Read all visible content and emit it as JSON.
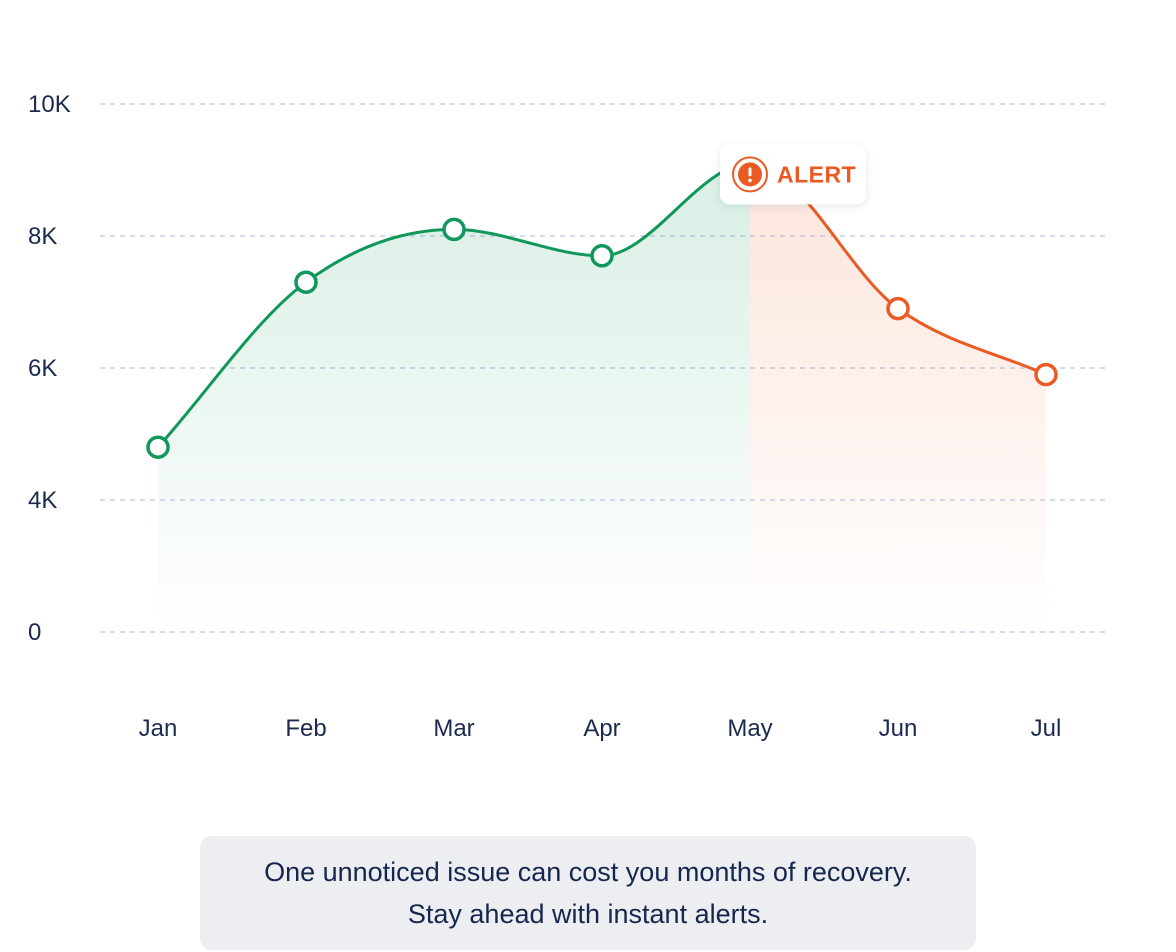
{
  "chart_data": {
    "type": "line",
    "categories": [
      "Jan",
      "Feb",
      "Mar",
      "Apr",
      "May",
      "Jun",
      "Jul"
    ],
    "series": [
      {
        "values": [
          4800,
          7300,
          8100,
          7700,
          9100,
          6900,
          5900
        ]
      }
    ],
    "y_ticks": [
      "0",
      "4K",
      "6K",
      "8K",
      "10K"
    ],
    "annotation": {
      "label": "ALERT",
      "at": "May",
      "icon": "alert-circle-icon"
    },
    "colors": {
      "normal": "#10985a",
      "alert": "#ea5a22",
      "grid": "#c9cfe6",
      "text": "#1b2a4e"
    },
    "grid": true,
    "legend": "none"
  },
  "caption": {
    "line1": "One unnoticed issue can cost you months of recovery.",
    "line2": "Stay ahead with instant alerts."
  }
}
